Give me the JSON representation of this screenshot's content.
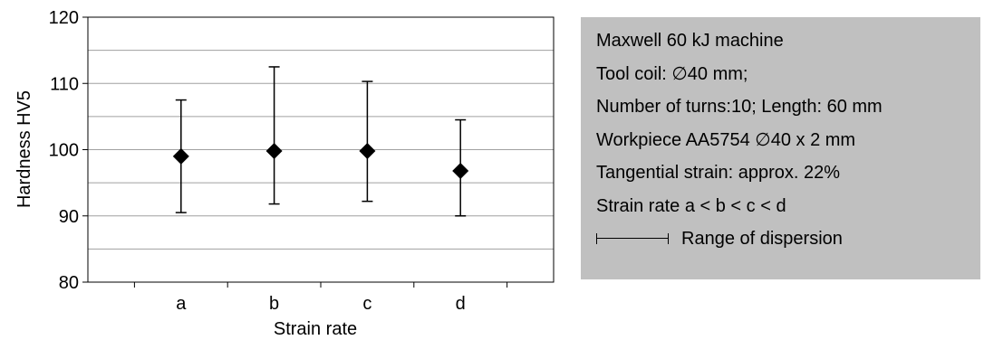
{
  "chart_data": {
    "type": "scatter",
    "title": "",
    "xlabel": "Strain rate",
    "ylabel": "Hardness HV5",
    "categories": [
      "a",
      "b",
      "c",
      "d"
    ],
    "ylim": [
      80,
      120
    ],
    "yticks": [
      80,
      90,
      100,
      110,
      120
    ],
    "grid": true,
    "series": [
      {
        "values": [
          99,
          99.8,
          99.8,
          96.8
        ],
        "range_min": [
          90.5,
          91.8,
          92.2,
          90
        ],
        "range_max": [
          107.5,
          112.5,
          110.3,
          104.5
        ],
        "marker": "diamond",
        "color": "#000000"
      }
    ]
  },
  "legend_box": {
    "lines": [
      "Maxwell 60 kJ machine",
      "Tool coil: ∅40 mm;",
      "Number of turns:10; Length: 60 mm",
      "Workpiece AA5754 ∅40 x 2 mm",
      "Tangential strain: approx. 22%",
      "Strain rate a < b < c < d"
    ],
    "dispersion_label": "Range of dispersion",
    "background": "#c0c0c0"
  }
}
